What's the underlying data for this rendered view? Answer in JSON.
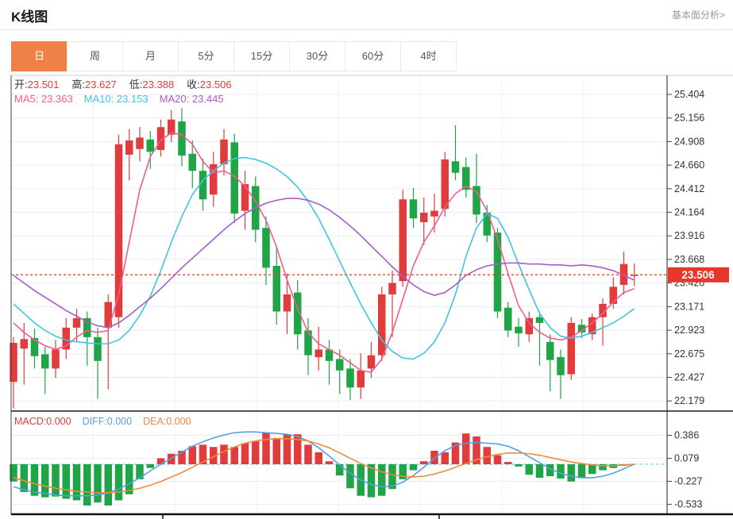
{
  "header": {
    "title": "K线图",
    "link": "基本面分析>"
  },
  "tabs": {
    "items": [
      "日",
      "周",
      "月",
      "5分",
      "15分",
      "30分",
      "60分",
      "4时"
    ],
    "keys": [
      "day",
      "week",
      "month",
      "5min",
      "15min",
      "30min",
      "60min",
      "4hour"
    ],
    "active_index": 0
  },
  "overlay": {
    "ohlc": [
      {
        "label": "开:",
        "value": "23.501"
      },
      {
        "label": "高:",
        "value": "23.627"
      },
      {
        "label": "低:",
        "value": "23.388"
      },
      {
        "label": "收:",
        "value": "23.506"
      }
    ],
    "ma": [
      {
        "text": "MA5: 23.363",
        "color": "#f25c8e"
      },
      {
        "text": "MA10: 23.153",
        "color": "#3ec6e0"
      },
      {
        "text": "MA20: 23.445",
        "color": "#a95cc8"
      }
    ]
  },
  "price_tag": {
    "value": "23.506"
  },
  "colors": {
    "up": "#e23b3b",
    "down": "#1fa446",
    "ma5": "#f25c8e",
    "ma10": "#3ec6e0",
    "ma20": "#a95cc8",
    "diff": "#54a0e6",
    "dea": "#f08a3c",
    "macd_label": "#e53b3b",
    "tab_orange": "#f08146",
    "tag_red": "#e7372c",
    "dotted_line": "#e8463a",
    "grid": "#e8edf4",
    "spine": "#444",
    "axis_text": "#333",
    "zero_dash": "#86d3e3"
  },
  "chart_data": {
    "type": "candlestick+macd",
    "main": {
      "title": "K线图 日线",
      "y_ticks": [
        "25.404",
        "25.156",
        "24.908",
        "24.660",
        "24.412",
        "24.164",
        "23.916",
        "23.668",
        "23.420",
        "23.171",
        "22.923",
        "22.675",
        "22.427",
        "22.179"
      ],
      "y_range": [
        22.179,
        25.404
      ],
      "current_price": 23.506,
      "ohlc_display": {
        "open": 23.501,
        "high": 23.627,
        "low": 23.388,
        "close": 23.506
      },
      "ma_display": {
        "ma5": 23.363,
        "ma10": 23.153,
        "ma20": 23.445
      },
      "candles": [
        [
          22.38,
          22.85,
          22.1,
          22.79
        ],
        [
          22.73,
          23.0,
          22.35,
          22.83
        ],
        [
          22.84,
          22.94,
          22.52,
          22.65
        ],
        [
          22.67,
          22.75,
          22.25,
          22.52
        ],
        [
          22.52,
          22.82,
          22.42,
          22.72
        ],
        [
          22.72,
          23.05,
          22.62,
          22.95
        ],
        [
          22.95,
          23.15,
          22.8,
          23.05
        ],
        [
          23.05,
          23.12,
          22.55,
          22.85
        ],
        [
          22.85,
          22.95,
          22.2,
          22.6
        ],
        [
          22.95,
          23.3,
          22.3,
          23.22
        ],
        [
          23.06,
          24.98,
          22.95,
          24.88
        ],
        [
          24.77,
          25.04,
          24.5,
          24.92
        ],
        [
          24.83,
          25.06,
          24.7,
          24.95
        ],
        [
          24.93,
          25.02,
          24.62,
          24.8
        ],
        [
          24.82,
          25.14,
          24.75,
          25.06
        ],
        [
          24.98,
          25.24,
          24.9,
          25.14
        ],
        [
          25.12,
          25.26,
          24.65,
          24.76
        ],
        [
          24.78,
          24.92,
          24.42,
          24.6
        ],
        [
          24.6,
          24.73,
          24.18,
          24.3
        ],
        [
          24.35,
          24.8,
          24.22,
          24.67
        ],
        [
          24.67,
          25.04,
          24.55,
          24.93
        ],
        [
          24.9,
          24.99,
          24.05,
          24.15
        ],
        [
          24.18,
          24.6,
          23.98,
          24.46
        ],
        [
          24.44,
          24.54,
          23.85,
          23.98
        ],
        [
          24.0,
          24.12,
          23.4,
          23.58
        ],
        [
          23.6,
          23.8,
          22.98,
          23.12
        ],
        [
          23.12,
          23.52,
          22.88,
          23.3
        ],
        [
          23.32,
          23.45,
          22.72,
          22.88
        ],
        [
          22.92,
          23.05,
          22.45,
          22.66
        ],
        [
          22.64,
          22.96,
          22.5,
          22.72
        ],
        [
          22.72,
          22.82,
          22.35,
          22.6
        ],
        [
          22.62,
          22.72,
          22.25,
          22.5
        ],
        [
          22.52,
          22.62,
          22.19,
          22.32
        ],
        [
          22.32,
          22.68,
          22.2,
          22.5
        ],
        [
          22.52,
          22.8,
          22.42,
          22.66
        ],
        [
          22.66,
          23.38,
          22.6,
          23.3
        ],
        [
          23.3,
          23.55,
          22.85,
          23.42
        ],
        [
          23.44,
          24.4,
          23.38,
          24.3
        ],
        [
          24.3,
          24.42,
          24.0,
          24.1
        ],
        [
          24.06,
          24.32,
          23.82,
          24.16
        ],
        [
          24.12,
          24.36,
          23.95,
          24.18
        ],
        [
          24.2,
          24.8,
          24.12,
          24.72
        ],
        [
          24.7,
          25.08,
          24.5,
          24.58
        ],
        [
          24.64,
          24.74,
          24.32,
          24.4
        ],
        [
          24.44,
          24.78,
          24.05,
          24.14
        ],
        [
          24.16,
          24.24,
          23.85,
          23.92
        ],
        [
          23.95,
          24.0,
          23.05,
          23.12
        ],
        [
          23.16,
          23.22,
          22.85,
          22.92
        ],
        [
          22.96,
          23.05,
          22.75,
          22.89
        ],
        [
          22.88,
          23.12,
          22.8,
          23.05
        ],
        [
          23.06,
          23.12,
          22.55,
          23.0
        ],
        [
          22.8,
          22.88,
          22.28,
          22.61
        ],
        [
          22.64,
          22.72,
          22.2,
          22.45
        ],
        [
          22.46,
          23.06,
          22.4,
          23.0
        ],
        [
          22.98,
          23.04,
          22.84,
          22.9
        ],
        [
          22.88,
          23.1,
          22.82,
          23.06
        ],
        [
          23.06,
          23.26,
          22.76,
          23.2
        ],
        [
          23.2,
          23.48,
          23.15,
          23.38
        ],
        [
          23.4,
          23.75,
          23.3,
          23.62
        ],
        [
          23.501,
          23.627,
          23.388,
          23.506
        ]
      ],
      "ma5": [
        23.0,
        22.9,
        22.82,
        22.76,
        22.72,
        22.76,
        22.85,
        22.92,
        22.9,
        22.92,
        23.3,
        23.85,
        24.4,
        24.75,
        24.92,
        25.0,
        24.98,
        24.88,
        24.7,
        24.58,
        24.6,
        24.54,
        24.44,
        24.28,
        24.08,
        23.8,
        23.45,
        23.15,
        22.9,
        22.78,
        22.72,
        22.66,
        22.58,
        22.5,
        22.48,
        22.62,
        22.9,
        23.25,
        23.6,
        23.85,
        24.02,
        24.22,
        24.36,
        24.44,
        24.38,
        24.18,
        23.88,
        23.52,
        23.18,
        23.0,
        22.9,
        22.84,
        22.82,
        22.85,
        22.92,
        23.0,
        23.1,
        23.22,
        23.32,
        23.36
      ],
      "ma10": [
        23.2,
        23.1,
        23.0,
        22.92,
        22.86,
        22.82,
        22.8,
        22.79,
        22.78,
        22.78,
        22.82,
        22.92,
        23.08,
        23.28,
        23.55,
        23.85,
        24.12,
        24.35,
        24.5,
        24.6,
        24.68,
        24.73,
        24.74,
        24.72,
        24.68,
        24.62,
        24.54,
        24.43,
        24.28,
        24.1,
        23.88,
        23.65,
        23.42,
        23.2,
        23.0,
        22.82,
        22.7,
        22.63,
        22.62,
        22.68,
        22.8,
        23.0,
        23.3,
        23.7,
        24.0,
        24.15,
        24.1,
        23.9,
        23.62,
        23.35,
        23.1,
        22.95,
        22.86,
        22.84,
        22.86,
        22.9,
        22.95,
        23.0,
        23.07,
        23.15
      ],
      "ma20": [
        23.5,
        23.42,
        23.34,
        23.27,
        23.2,
        23.13,
        23.07,
        23.01,
        22.97,
        22.95,
        23.0,
        23.08,
        23.17,
        23.26,
        23.36,
        23.47,
        23.58,
        23.68,
        23.78,
        23.88,
        23.98,
        24.07,
        24.15,
        24.21,
        24.26,
        24.29,
        24.31,
        24.31,
        24.29,
        24.25,
        24.19,
        24.11,
        24.02,
        23.92,
        23.81,
        23.7,
        23.59,
        23.49,
        23.4,
        23.33,
        23.29,
        23.32,
        23.4,
        23.5,
        23.56,
        23.6,
        23.62,
        23.63,
        23.63,
        23.62,
        23.62,
        23.61,
        23.61,
        23.6,
        23.61,
        23.6,
        23.58,
        23.55,
        23.5,
        23.45
      ]
    },
    "macd": {
      "labels": [
        {
          "text": "MACD:0.000",
          "color": "#e53b3b"
        },
        {
          "text": "DIFF:0.000",
          "color": "#54a0e6"
        },
        {
          "text": "DEA:0.000",
          "color": "#f08a3c"
        }
      ],
      "y_ticks": [
        "0.386",
        "0.079",
        "-0.227",
        "-0.533"
      ],
      "histogram": [
        -0.23,
        -0.37,
        -0.42,
        -0.44,
        -0.43,
        -0.46,
        -0.48,
        -0.55,
        -0.51,
        -0.55,
        -0.48,
        -0.4,
        -0.2,
        -0.05,
        0.08,
        0.14,
        0.18,
        0.24,
        0.26,
        0.23,
        0.26,
        0.23,
        0.28,
        0.31,
        0.42,
        0.35,
        0.4,
        0.4,
        0.26,
        0.16,
        0.04,
        -0.15,
        -0.32,
        -0.42,
        -0.44,
        -0.42,
        -0.33,
        -0.2,
        -0.08,
        0.04,
        0.18,
        0.16,
        0.29,
        0.41,
        0.37,
        0.23,
        0.12,
        0.03,
        -0.03,
        -0.14,
        -0.18,
        -0.16,
        -0.19,
        -0.23,
        -0.18,
        -0.13,
        -0.08,
        -0.05,
        -0.02,
        0.0
      ],
      "diff": [
        -0.3,
        -0.34,
        -0.37,
        -0.39,
        -0.41,
        -0.42,
        -0.42,
        -0.42,
        -0.41,
        -0.38,
        -0.33,
        -0.26,
        -0.18,
        -0.09,
        0.0,
        0.08,
        0.16,
        0.24,
        0.3,
        0.35,
        0.39,
        0.42,
        0.43,
        0.43,
        0.42,
        0.41,
        0.4,
        0.37,
        0.31,
        0.22,
        0.11,
        -0.01,
        -0.12,
        -0.21,
        -0.27,
        -0.3,
        -0.29,
        -0.24,
        -0.15,
        -0.04,
        0.08,
        0.18,
        0.25,
        0.28,
        0.29,
        0.28,
        0.27,
        0.24,
        0.18,
        0.1,
        0.02,
        -0.06,
        -0.12,
        -0.16,
        -0.18,
        -0.18,
        -0.16,
        -0.12,
        -0.06,
        0.0
      ],
      "dea": [
        -0.18,
        -0.22,
        -0.26,
        -0.29,
        -0.32,
        -0.34,
        -0.36,
        -0.37,
        -0.38,
        -0.38,
        -0.37,
        -0.35,
        -0.32,
        -0.28,
        -0.23,
        -0.17,
        -0.11,
        -0.04,
        0.03,
        0.1,
        0.17,
        0.23,
        0.28,
        0.31,
        0.33,
        0.34,
        0.34,
        0.33,
        0.31,
        0.27,
        0.22,
        0.15,
        0.08,
        0.01,
        -0.05,
        -0.1,
        -0.14,
        -0.16,
        -0.17,
        -0.16,
        -0.13,
        -0.09,
        -0.04,
        0.01,
        0.06,
        0.1,
        0.13,
        0.15,
        0.15,
        0.14,
        0.12,
        0.09,
        0.06,
        0.03,
        0.01,
        -0.01,
        -0.02,
        -0.02,
        -0.01,
        0.0
      ]
    }
  }
}
